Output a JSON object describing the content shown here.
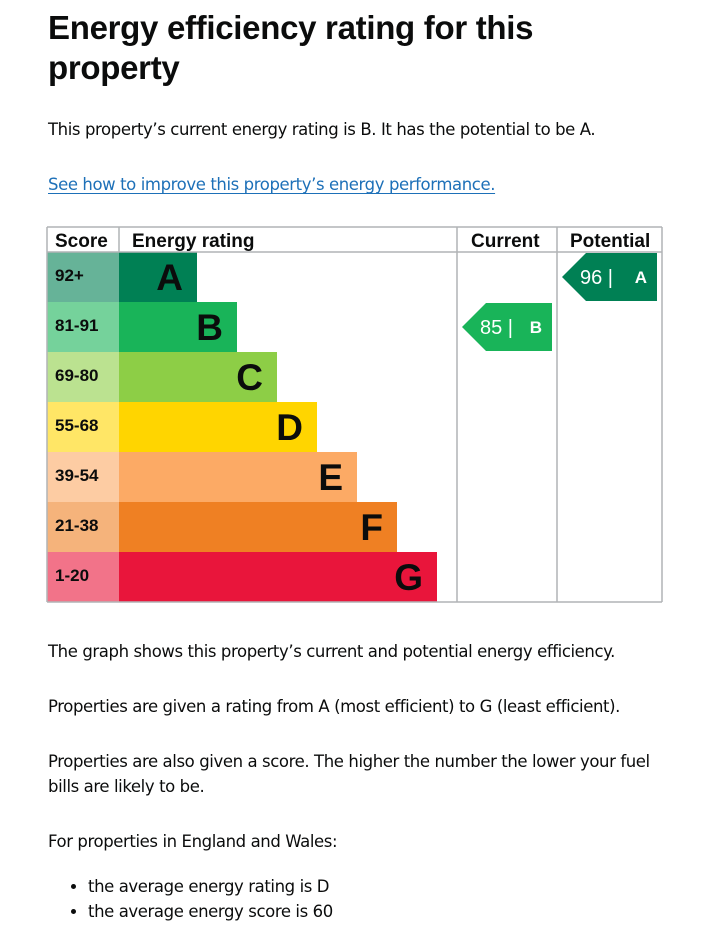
{
  "heading": "Energy efficiency rating for this property",
  "intro": "This property’s current energy rating is B. It has the potential to be A.",
  "improve_link": "See how to improve this property’s energy performance.",
  "chart_data": {
    "type": "bar",
    "columns": {
      "score": "Score",
      "rating": "Energy rating",
      "current": "Current",
      "potential": "Potential"
    },
    "bands": [
      {
        "letter": "A",
        "range": "92+",
        "color": "#008054",
        "score_bg": "#66b398",
        "letter_color": "#0b0c0c"
      },
      {
        "letter": "B",
        "range": "81-91",
        "color": "#19b459",
        "score_bg": "#75d29b",
        "letter_color": "#0b0c0c"
      },
      {
        "letter": "C",
        "range": "69-80",
        "color": "#8dce46",
        "score_bg": "#bbe290",
        "letter_color": "#0b0c0c"
      },
      {
        "letter": "D",
        "range": "55-68",
        "color": "#ffd500",
        "score_bg": "#ffe666",
        "letter_color": "#0b0c0c"
      },
      {
        "letter": "E",
        "range": "39-54",
        "color": "#fcaa65",
        "score_bg": "#fdcca3",
        "letter_color": "#0b0c0c"
      },
      {
        "letter": "F",
        "range": "21-38",
        "color": "#ef8023",
        "score_bg": "#f5b37b",
        "letter_color": "#0b0c0c"
      },
      {
        "letter": "G",
        "range": "1-20",
        "color": "#e9153b",
        "score_bg": "#f27389",
        "letter_color": "#0b0c0c"
      }
    ],
    "current": {
      "score": 85,
      "letter": "B",
      "color": "#19b459"
    },
    "potential": {
      "score": 96,
      "letter": "A",
      "color": "#008054"
    }
  },
  "explanations": [
    "The graph shows this property’s current and potential energy efficiency.",
    "Properties are given a rating from A (most efficient) to G (least efficient).",
    "Properties are also given a score. The higher the number the lower your fuel bills are likely to be.",
    "For properties in England and Wales:"
  ],
  "bullets": [
    "the average energy rating is D",
    "the average energy score is 60"
  ]
}
